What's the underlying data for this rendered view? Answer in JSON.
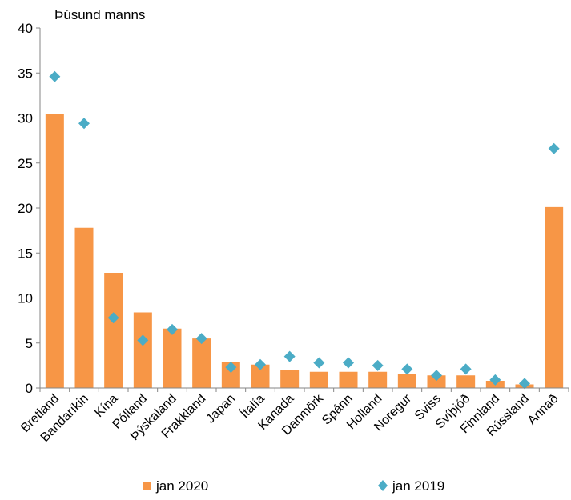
{
  "chart_data": {
    "type": "bar",
    "ylabel": "Þúsund manns",
    "ylim": [
      0,
      40
    ],
    "yticks": [
      0,
      5,
      10,
      15,
      20,
      25,
      30,
      35,
      40
    ],
    "grid": false,
    "legend_position": "bottom",
    "categories": [
      "Bretland",
      "Bandaríkin",
      "Kína",
      "Pólland",
      "Þýskaland",
      "Frakkland",
      "Japan",
      "Ítalía",
      "Kanada",
      "Danmörk",
      "Spánn",
      "Holland",
      "Noregur",
      "Sviss",
      "Svíþjóð",
      "Finnland",
      "Rússland",
      "Annað"
    ],
    "series": [
      {
        "name": "jan 2020",
        "kind": "bar",
        "color": "#F79646",
        "values": [
          30.4,
          17.8,
          12.8,
          8.4,
          6.6,
          5.5,
          2.9,
          2.6,
          2.0,
          1.8,
          1.8,
          1.8,
          1.6,
          1.4,
          1.4,
          0.8,
          0.4,
          20.1
        ]
      },
      {
        "name": "jan 2019",
        "kind": "marker",
        "marker": "diamond",
        "color": "#4BACC6",
        "values": [
          34.6,
          29.4,
          7.8,
          5.3,
          6.5,
          5.5,
          2.3,
          2.6,
          3.5,
          2.8,
          2.8,
          2.5,
          2.1,
          1.4,
          2.1,
          0.9,
          0.5,
          26.6
        ]
      }
    ]
  }
}
